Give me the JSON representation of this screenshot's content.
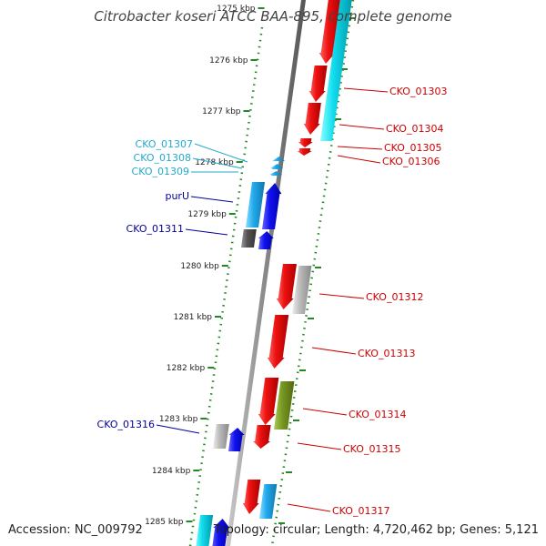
{
  "title": "Citrobacter koseri ATCC BAA-895, complete genome",
  "accession": "Accession: NC_009792",
  "summary": "Topology: circular; Length: 4,720,462 bp; Genes: 5,121",
  "colors": {
    "red": "#ee1111",
    "cyan": "#11ddee",
    "light_blue": "#22aaee",
    "blue": "#1111ee",
    "navy": "#000099",
    "olive": "#779922",
    "gray": "#aaaaaa",
    "dark_gray": "#555555",
    "axis": "#999999",
    "tick": "#228822",
    "label_red": "#cc0000",
    "label_cyan": "#22aacc"
  },
  "ticks": [
    "1275 kbp",
    "1276 kbp",
    "1277 kbp",
    "1278 kbp",
    "1279 kbp",
    "1280 kbp",
    "1281 kbp",
    "1282 kbp",
    "1283 kbp",
    "1284 kbp",
    "1285 kbp"
  ],
  "genes_left": [
    {
      "name": "CKO_01307",
      "color": "label_cyan"
    },
    {
      "name": "CKO_01308",
      "color": "label_cyan"
    },
    {
      "name": "CKO_01309",
      "color": "label_cyan"
    },
    {
      "name": "purU",
      "color": "navy"
    },
    {
      "name": "CKO_01311",
      "color": "navy"
    },
    {
      "name": "CKO_01316",
      "color": "navy"
    }
  ],
  "genes_right": [
    {
      "name": "CKO_01303",
      "color": "label_red"
    },
    {
      "name": "CKO_01304",
      "color": "label_red"
    },
    {
      "name": "CKO_01305",
      "color": "label_red"
    },
    {
      "name": "CKO_01306",
      "color": "label_red"
    },
    {
      "name": "CKO_01312",
      "color": "label_red"
    },
    {
      "name": "CKO_01313",
      "color": "label_red"
    },
    {
      "name": "CKO_01314",
      "color": "label_red"
    },
    {
      "name": "CKO_01315",
      "color": "label_red"
    },
    {
      "name": "CKO_01317",
      "color": "label_red"
    }
  ]
}
